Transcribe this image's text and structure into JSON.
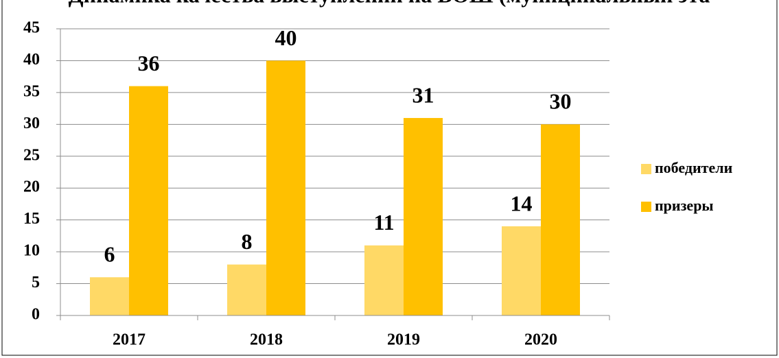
{
  "chart_data": {
    "type": "bar",
    "title": "Динамика качества выступлений на ВОШ (муниципальный эта",
    "categories": [
      "2017",
      "2018",
      "2019",
      "2020"
    ],
    "series": [
      {
        "name": "победители",
        "color": "#FFD966",
        "values": [
          6,
          8,
          11,
          14
        ]
      },
      {
        "name": "призеры",
        "color": "#FFC000",
        "values": [
          36,
          40,
          31,
          30
        ]
      }
    ],
    "ylim": [
      0,
      45
    ],
    "yticks": [
      0,
      5,
      10,
      15,
      20,
      25,
      30,
      35,
      40,
      45
    ],
    "grid": true,
    "legend": "right"
  }
}
